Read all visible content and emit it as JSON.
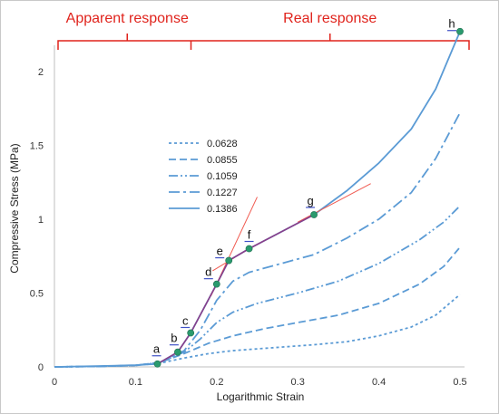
{
  "chart_data": {
    "type": "line",
    "xlabel": "Logarithmic Strain",
    "ylabel": "Compressive Stress (MPa)",
    "xlim": [
      0,
      0.5
    ],
    "ylim": [
      0,
      2.25
    ],
    "x_ticks": [
      "0",
      "0.1",
      "0.2",
      "0.3",
      "0.4",
      "0.5"
    ],
    "y_ticks": [
      "0",
      "0.5",
      "1",
      "1.5",
      "2"
    ],
    "x_tick_values": [
      0,
      0.1,
      0.2,
      0.3,
      0.4,
      0.5
    ],
    "y_tick_values": [
      0,
      0.5,
      1,
      1.5,
      2
    ],
    "grid": false,
    "legend_position": "center-left",
    "series_color": "#5b9bd5",
    "region_color": "#e0231c",
    "point_color": "#2a9a6e",
    "highlight_color": "#8a3f8a",
    "regions": [
      {
        "label": "Apparent response",
        "x_range": [
          0.0,
          0.165
        ]
      },
      {
        "label": "Real response",
        "x_range": [
          0.165,
          0.5
        ]
      }
    ],
    "series": [
      {
        "name": "0.0628",
        "dash": "3,3",
        "points": [
          [
            0,
            0
          ],
          [
            0.05,
            0.003
          ],
          [
            0.1,
            0.01
          ],
          [
            0.13,
            0.025
          ],
          [
            0.16,
            0.06
          ],
          [
            0.19,
            0.09
          ],
          [
            0.22,
            0.11
          ],
          [
            0.27,
            0.13
          ],
          [
            0.32,
            0.15
          ],
          [
            0.36,
            0.17
          ],
          [
            0.4,
            0.21
          ],
          [
            0.44,
            0.27
          ],
          [
            0.47,
            0.35
          ],
          [
            0.5,
            0.49
          ]
        ]
      },
      {
        "name": "0.0855",
        "dash": "8,4",
        "points": [
          [
            0,
            0
          ],
          [
            0.05,
            0.003
          ],
          [
            0.1,
            0.01
          ],
          [
            0.13,
            0.03
          ],
          [
            0.16,
            0.09
          ],
          [
            0.19,
            0.16
          ],
          [
            0.22,
            0.21
          ],
          [
            0.26,
            0.26
          ],
          [
            0.3,
            0.3
          ],
          [
            0.35,
            0.35
          ],
          [
            0.4,
            0.43
          ],
          [
            0.45,
            0.56
          ],
          [
            0.48,
            0.68
          ],
          [
            0.5,
            0.81
          ]
        ]
      },
      {
        "name": "0.1059",
        "dash": "10,3,2,3,2,3",
        "points": [
          [
            0,
            0
          ],
          [
            0.05,
            0.003
          ],
          [
            0.1,
            0.01
          ],
          [
            0.13,
            0.03
          ],
          [
            0.16,
            0.1
          ],
          [
            0.18,
            0.19
          ],
          [
            0.2,
            0.3
          ],
          [
            0.22,
            0.37
          ],
          [
            0.25,
            0.43
          ],
          [
            0.3,
            0.5
          ],
          [
            0.35,
            0.58
          ],
          [
            0.4,
            0.7
          ],
          [
            0.45,
            0.86
          ],
          [
            0.48,
            0.98
          ],
          [
            0.5,
            1.09
          ]
        ]
      },
      {
        "name": "0.1227",
        "dash": "12,4,3,4",
        "points": [
          [
            0,
            0
          ],
          [
            0.05,
            0.003
          ],
          [
            0.1,
            0.01
          ],
          [
            0.13,
            0.03
          ],
          [
            0.16,
            0.11
          ],
          [
            0.18,
            0.25
          ],
          [
            0.2,
            0.45
          ],
          [
            0.22,
            0.58
          ],
          [
            0.24,
            0.64
          ],
          [
            0.28,
            0.7
          ],
          [
            0.32,
            0.76
          ],
          [
            0.36,
            0.87
          ],
          [
            0.4,
            1.0
          ],
          [
            0.44,
            1.18
          ],
          [
            0.47,
            1.41
          ],
          [
            0.5,
            1.72
          ]
        ]
      },
      {
        "name": "0.1386",
        "dash": "",
        "points": [
          [
            0,
            0
          ],
          [
            0.05,
            0.005
          ],
          [
            0.1,
            0.012
          ],
          [
            0.127,
            0.02
          ],
          [
            0.152,
            0.1
          ],
          [
            0.168,
            0.23
          ],
          [
            0.2,
            0.56
          ],
          [
            0.215,
            0.72
          ],
          [
            0.24,
            0.8
          ],
          [
            0.32,
            1.03
          ],
          [
            0.36,
            1.19
          ],
          [
            0.4,
            1.38
          ],
          [
            0.44,
            1.61
          ],
          [
            0.47,
            1.88
          ],
          [
            0.5,
            2.27
          ]
        ]
      }
    ],
    "points": [
      {
        "label": "a",
        "x": 0.127,
        "y": 0.02
      },
      {
        "label": "b",
        "x": 0.152,
        "y": 0.1
      },
      {
        "label": "c",
        "x": 0.168,
        "y": 0.23
      },
      {
        "label": "d",
        "x": 0.2,
        "y": 0.56
      },
      {
        "label": "e",
        "x": 0.215,
        "y": 0.72
      },
      {
        "label": "f",
        "x": 0.24,
        "y": 0.8
      },
      {
        "label": "g",
        "x": 0.32,
        "y": 1.03
      },
      {
        "label": "h",
        "x": 0.5,
        "y": 2.27
      }
    ]
  }
}
